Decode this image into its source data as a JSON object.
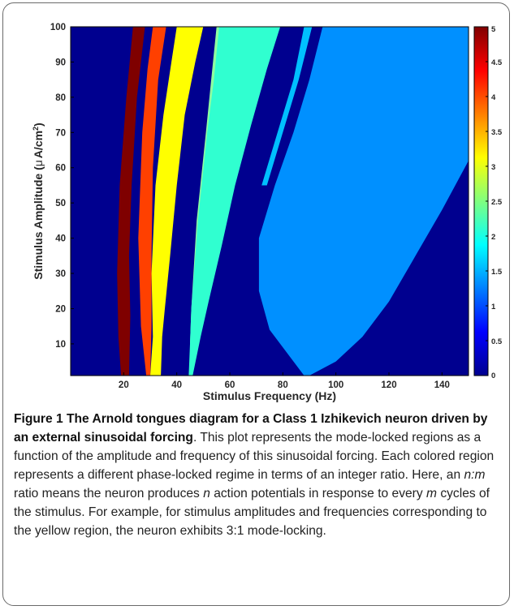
{
  "chart_data": {
    "type": "heatmap",
    "title": "",
    "xlabel": "Stimulus Frequency (Hz)",
    "ylabel_parts": [
      "Stimulus Amplitude (",
      "μ",
      "A/cm",
      "2",
      ")"
    ],
    "xlim": [
      0,
      150
    ],
    "ylim": [
      1,
      100
    ],
    "xticks": [
      20,
      40,
      60,
      80,
      100,
      120,
      140
    ],
    "yticks": [
      10,
      20,
      30,
      40,
      50,
      60,
      70,
      80,
      90,
      100
    ],
    "colorbar": {
      "range": [
        0,
        5
      ],
      "ticks": [
        0,
        0.5,
        1,
        1.5,
        2,
        2.5,
        3,
        3.5,
        4,
        4.5,
        5
      ],
      "tick_labels": [
        "0",
        "0.5",
        "1",
        "1.5",
        "2",
        "2.5",
        "3",
        "3.5",
        "4",
        "4.5",
        "5"
      ],
      "colormap": "jet"
    },
    "background_value": 0,
    "grid": false,
    "regions": [
      {
        "value": 5,
        "color": "#7f0000",
        "boundary": [
          [
            19,
            1
          ],
          [
            18,
            12
          ],
          [
            17.5,
            30
          ],
          [
            18.5,
            55
          ],
          [
            21,
            80
          ],
          [
            23.5,
            100
          ],
          [
            28,
            100
          ],
          [
            25,
            80
          ],
          [
            23,
            55
          ],
          [
            22,
            35
          ],
          [
            22.5,
            18
          ],
          [
            22,
            1
          ]
        ]
      },
      {
        "value": 4,
        "color": "#ff4000",
        "boundary": [
          [
            28.5,
            1
          ],
          [
            26.5,
            15
          ],
          [
            25.5,
            40
          ],
          [
            27,
            70
          ],
          [
            29,
            88
          ],
          [
            31,
            100
          ],
          [
            36,
            100
          ],
          [
            33,
            85
          ],
          [
            31,
            60
          ],
          [
            30.5,
            35
          ],
          [
            30.5,
            15
          ],
          [
            30,
            1
          ]
        ]
      },
      {
        "value": 3,
        "color": "#ffff00",
        "boundary": [
          [
            30,
            1
          ],
          [
            31,
            12
          ],
          [
            30.5,
            30
          ],
          [
            32,
            55
          ],
          [
            35,
            75
          ],
          [
            38,
            90
          ],
          [
            40,
            100
          ],
          [
            50,
            100
          ],
          [
            47,
            90
          ],
          [
            43,
            75
          ],
          [
            40,
            55
          ],
          [
            37.5,
            35
          ],
          [
            35.5,
            20
          ],
          [
            34.5,
            12
          ],
          [
            34,
            1
          ]
        ]
      },
      {
        "value": 2.5,
        "color": "#8fffa0",
        "boundary": [
          [
            45,
            1
          ],
          [
            45,
            10
          ],
          [
            45.5,
            20
          ],
          [
            47.5,
            45
          ],
          [
            51,
            70
          ],
          [
            53,
            85
          ],
          [
            55,
            100
          ],
          [
            57,
            100
          ],
          [
            54.5,
            85
          ],
          [
            52,
            70
          ],
          [
            49,
            45
          ],
          [
            46.5,
            20
          ],
          [
            45.5,
            1
          ]
        ]
      },
      {
        "value": 2,
        "color": "#30ffd0",
        "boundary": [
          [
            44.5,
            1
          ],
          [
            45,
            10
          ],
          [
            45.5,
            20
          ],
          [
            48,
            45
          ],
          [
            51.5,
            70
          ],
          [
            54,
            85
          ],
          [
            56,
            100
          ],
          [
            79,
            100
          ],
          [
            74,
            88
          ],
          [
            68,
            72
          ],
          [
            62,
            55
          ],
          [
            57,
            38
          ],
          [
            52,
            22
          ],
          [
            49,
            12
          ],
          [
            46,
            1
          ]
        ]
      },
      {
        "value": 1.75,
        "color": "#00c0ff",
        "boundary": [
          [
            72,
            55
          ],
          [
            78,
            70
          ],
          [
            84,
            85
          ],
          [
            88,
            100
          ],
          [
            91,
            100
          ],
          [
            86,
            85
          ],
          [
            80,
            70
          ],
          [
            74,
            55
          ]
        ]
      },
      {
        "value": 1.5,
        "color": "#0090ff",
        "boundary": [
          [
            88,
            1
          ],
          [
            75,
            14
          ],
          [
            71,
            25
          ],
          [
            71,
            40
          ],
          [
            77,
            55
          ],
          [
            84,
            70
          ],
          [
            90,
            85
          ],
          [
            95,
            100
          ],
          [
            150,
            100
          ],
          [
            150,
            62
          ],
          [
            140,
            48
          ],
          [
            130,
            35
          ],
          [
            120,
            22
          ],
          [
            110,
            12
          ],
          [
            100,
            5
          ],
          [
            90,
            1
          ]
        ]
      }
    ]
  },
  "caption": {
    "title": "Figure 1 The Arnold tongues diagram for a Class 1 Izhikevich neuron driven by an external sinusoidal forcing",
    "text_1": ". This plot represents the mode-locked regions as a function of the amplitude and frequency of this sinusoidal forcing. Each colored region represents a different phase-locked regime in terms of an integer ratio. Here, an ",
    "ratio": "n:m",
    "text_2": " ratio means the neuron produces ",
    "n": "n",
    "text_3": " action potentials in response to every ",
    "m": "m",
    "text_4": " cycles of the stimulus. For example, for stimulus amplitudes and frequencies corresponding to the yellow region, the neuron exhibits 3:1 mode-locking."
  }
}
